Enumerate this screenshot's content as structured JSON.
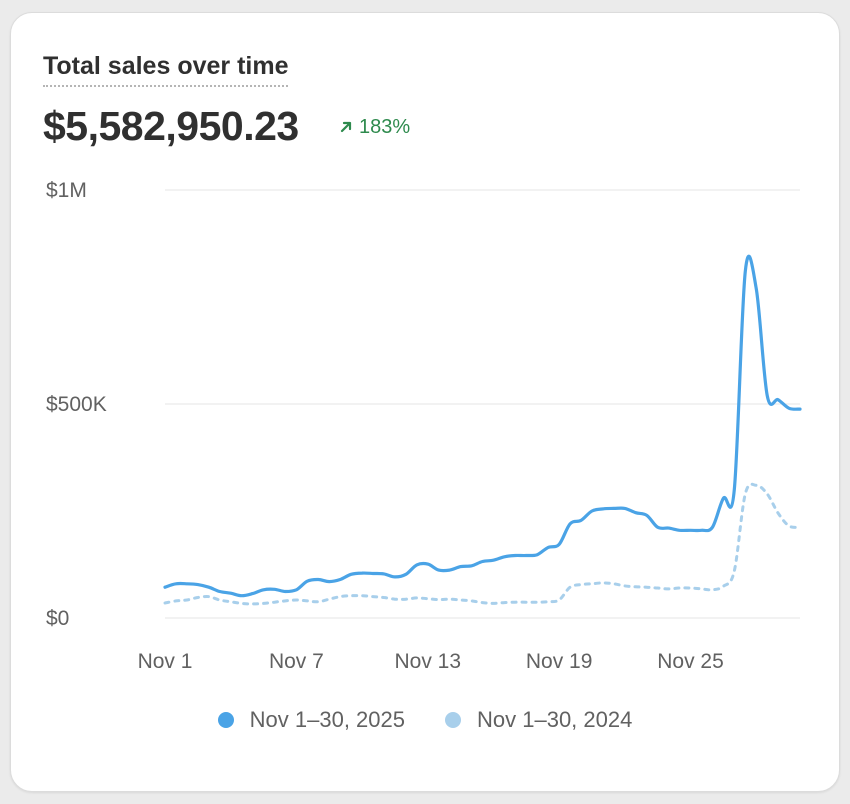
{
  "header": {
    "title": "Total sales over time",
    "total": "$5,582,950.23",
    "change": "183%",
    "change_icon": "arrow-up-right-icon"
  },
  "colors": {
    "current": "#4aa3e6",
    "previous": "#a8cfeb",
    "change_positive": "#2e8a4d",
    "grid": "#e6e6e6"
  },
  "chart_data": {
    "type": "line",
    "title": "Total sales over time",
    "xlabel": "",
    "ylabel": "",
    "x_ticks": [
      "Nov 1",
      "Nov 7",
      "Nov 13",
      "Nov 19",
      "Nov 25"
    ],
    "y_ticks": [
      "$0",
      "$500K",
      "$1M"
    ],
    "ylim": [
      0,
      1000000
    ],
    "grid": true,
    "legend": "bottom-center",
    "x_unit": "day of November",
    "series": [
      {
        "name": "Nov 1–30, 2025",
        "style": "solid",
        "points": [
          [
            1,
            72000
          ],
          [
            1.5,
            80000
          ],
          [
            2,
            80000
          ],
          [
            2.5,
            78000
          ],
          [
            3,
            72000
          ],
          [
            3.5,
            62000
          ],
          [
            4,
            58000
          ],
          [
            4.5,
            52000
          ],
          [
            5,
            57000
          ],
          [
            5.5,
            66000
          ],
          [
            6,
            67000
          ],
          [
            6.5,
            62000
          ],
          [
            7,
            66000
          ],
          [
            7.5,
            86000
          ],
          [
            8,
            90000
          ],
          [
            8.5,
            85000
          ],
          [
            9,
            90000
          ],
          [
            9.5,
            102000
          ],
          [
            10,
            105000
          ],
          [
            10.5,
            104000
          ],
          [
            11,
            103000
          ],
          [
            11.5,
            96000
          ],
          [
            12,
            102000
          ],
          [
            12.5,
            124000
          ],
          [
            13,
            126000
          ],
          [
            13.5,
            112000
          ],
          [
            14,
            112000
          ],
          [
            14.5,
            120000
          ],
          [
            15,
            122000
          ],
          [
            15.5,
            132000
          ],
          [
            16,
            135000
          ],
          [
            16.5,
            143000
          ],
          [
            17,
            146000
          ],
          [
            17.5,
            146000
          ],
          [
            18,
            148000
          ],
          [
            18.5,
            165000
          ],
          [
            19,
            172000
          ],
          [
            19.5,
            220000
          ],
          [
            20,
            228000
          ],
          [
            20.5,
            250000
          ],
          [
            21,
            255000
          ],
          [
            21.5,
            256000
          ],
          [
            22,
            256000
          ],
          [
            22.5,
            246000
          ],
          [
            23,
            240000
          ],
          [
            23.5,
            212000
          ],
          [
            24,
            210000
          ],
          [
            24.5,
            205000
          ],
          [
            25,
            205000
          ],
          [
            25.5,
            205000
          ],
          [
            26,
            212000
          ],
          [
            26.5,
            280000
          ],
          [
            27,
            300000
          ],
          [
            27.5,
            810000
          ],
          [
            28,
            770000
          ],
          [
            28.5,
            520000
          ],
          [
            29,
            510000
          ],
          [
            29.5,
            490000
          ],
          [
            30,
            488000
          ]
        ]
      },
      {
        "name": "Nov 1–30, 2024",
        "style": "dashed",
        "points": [
          [
            1,
            35000
          ],
          [
            1.5,
            40000
          ],
          [
            2,
            42000
          ],
          [
            2.5,
            48000
          ],
          [
            3,
            50000
          ],
          [
            3.5,
            42000
          ],
          [
            4,
            38000
          ],
          [
            4.5,
            34000
          ],
          [
            5,
            33000
          ],
          [
            5.5,
            34000
          ],
          [
            6,
            37000
          ],
          [
            6.5,
            40000
          ],
          [
            7,
            42000
          ],
          [
            7.5,
            40000
          ],
          [
            8,
            38000
          ],
          [
            8.5,
            44000
          ],
          [
            9,
            50000
          ],
          [
            9.5,
            52000
          ],
          [
            10,
            52000
          ],
          [
            10.5,
            50000
          ],
          [
            11,
            48000
          ],
          [
            11.5,
            44000
          ],
          [
            12,
            44000
          ],
          [
            12.5,
            47000
          ],
          [
            13,
            45000
          ],
          [
            13.5,
            43000
          ],
          [
            14,
            44000
          ],
          [
            14.5,
            42000
          ],
          [
            15,
            40000
          ],
          [
            15.5,
            36000
          ],
          [
            16,
            34000
          ],
          [
            16.5,
            36000
          ],
          [
            17,
            37000
          ],
          [
            17.5,
            37000
          ],
          [
            18,
            37000
          ],
          [
            18.5,
            38000
          ],
          [
            19,
            42000
          ],
          [
            19.5,
            72000
          ],
          [
            20,
            78000
          ],
          [
            20.5,
            80000
          ],
          [
            21,
            82000
          ],
          [
            21.5,
            80000
          ],
          [
            22,
            75000
          ],
          [
            22.5,
            73000
          ],
          [
            23,
            72000
          ],
          [
            23.5,
            70000
          ],
          [
            24,
            68000
          ],
          [
            24.5,
            70000
          ],
          [
            25,
            70000
          ],
          [
            25.5,
            68000
          ],
          [
            26,
            66000
          ],
          [
            26.5,
            74000
          ],
          [
            27,
            110000
          ],
          [
            27.5,
            290000
          ],
          [
            28,
            310000
          ],
          [
            28.5,
            290000
          ],
          [
            29,
            245000
          ],
          [
            29.5,
            215000
          ],
          [
            30,
            212000
          ]
        ]
      }
    ]
  }
}
